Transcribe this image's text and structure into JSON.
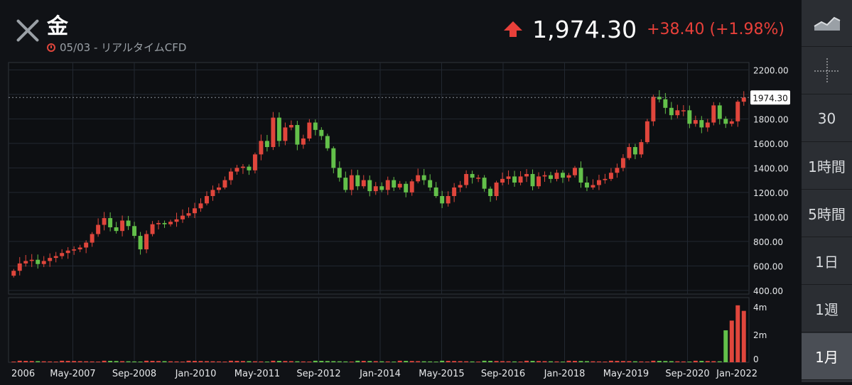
{
  "header": {
    "title": "金",
    "subtitle": "05/03 - リアルタイムCFD",
    "price": "1,974.30",
    "change": "+38.40",
    "change_pct": "(+1.98%)",
    "up_color": "#e8403a"
  },
  "toolbar": {
    "items": [
      {
        "label": "",
        "icon": "area-chart-icon"
      },
      {
        "label": "",
        "icon": "crosshair-icon"
      },
      {
        "label": "30"
      },
      {
        "label": "1時間"
      },
      {
        "label": "5時間"
      },
      {
        "label": "1日"
      },
      {
        "label": "1週"
      },
      {
        "label": "1月"
      }
    ],
    "active_index": 7
  },
  "chart_data": {
    "type": "candlestick",
    "x_tick_labels": [
      "2006",
      "May-2007",
      "Sep-2008",
      "Jan-2010",
      "May-2011",
      "Sep-2012",
      "Jan-2014",
      "May-2015",
      "Sep-2016",
      "Jan-2018",
      "May-2019",
      "Sep-2020",
      "Jan-2022"
    ],
    "y_tick_labels": [
      "2200.00",
      "2000.00",
      "1800.00",
      "1600.00",
      "1400.00",
      "1200.00",
      "1000.00",
      "800.00",
      "600.00",
      "400.00"
    ],
    "ylim": [
      370,
      2260
    ],
    "last_price_label": "1974.30",
    "last_price": 1974.3,
    "volume_tick_labels": [
      "4m",
      "2m",
      "0"
    ],
    "volume_ylim": [
      0,
      4.5
    ],
    "candle_colors": {
      "up": "#e0463c",
      "down": "#63c04a"
    },
    "closes": [
      560,
      620,
      640,
      650,
      615,
      640,
      665,
      680,
      705,
      725,
      735,
      750,
      790,
      860,
      935,
      990,
      915,
      885,
      970,
      925,
      845,
      735,
      860,
      940,
      950,
      940,
      960,
      980,
      1010,
      1030,
      1070,
      1110,
      1170,
      1220,
      1240,
      1300,
      1370,
      1400,
      1410,
      1380,
      1510,
      1620,
      1570,
      1810,
      1620,
      1730,
      1750,
      1590,
      1640,
      1770,
      1710,
      1660,
      1560,
      1400,
      1320,
      1220,
      1340,
      1250,
      1300,
      1210,
      1250,
      1220,
      1300,
      1240,
      1270,
      1200,
      1290,
      1340,
      1300,
      1240,
      1170,
      1110,
      1170,
      1240,
      1260,
      1350,
      1320,
      1320,
      1230,
      1170,
      1280,
      1310,
      1330,
      1280,
      1330,
      1350,
      1250,
      1330,
      1340,
      1310,
      1360,
      1320,
      1340,
      1400,
      1280,
      1240,
      1260,
      1300,
      1310,
      1360,
      1400,
      1480,
      1570,
      1510,
      1610,
      1780,
      1980,
      1960,
      1890,
      1830,
      1870,
      1870,
      1760,
      1790,
      1730,
      1770,
      1910,
      1800,
      1760,
      1780,
      1940,
      1974
    ]
  }
}
